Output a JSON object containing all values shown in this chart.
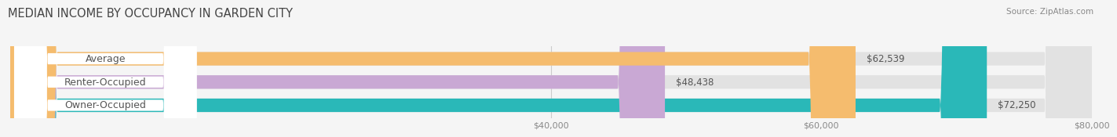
{
  "title": "MEDIAN INCOME BY OCCUPANCY IN GARDEN CITY",
  "source": "Source: ZipAtlas.com",
  "categories": [
    "Owner-Occupied",
    "Renter-Occupied",
    "Average"
  ],
  "values": [
    72250,
    48438,
    62539
  ],
  "bar_colors": [
    "#2ab8b8",
    "#c9a8d4",
    "#f5bc6e"
  ],
  "value_labels": [
    "$72,250",
    "$48,438",
    "$62,539"
  ],
  "xlim": [
    0,
    80000
  ],
  "xticks": [
    40000,
    60000,
    80000
  ],
  "xtick_labels": [
    "$40,000",
    "$60,000",
    "$80,000"
  ],
  "bar_height": 0.58,
  "background_color": "#f5f5f5",
  "bar_bg_color": "#e2e2e2",
  "title_fontsize": 10.5,
  "label_fontsize": 9,
  "value_fontsize": 8.5
}
